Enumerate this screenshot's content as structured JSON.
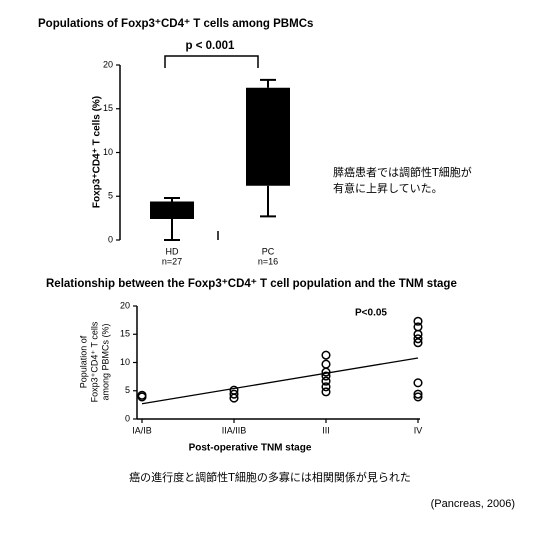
{
  "chart_data": [
    {
      "type": "box",
      "title": "Populations of Foxp3⁺CD4⁺ T cells among PBMCs",
      "annotation": "p < 0.001",
      "ylabel": "Foxp3⁺CD4⁺ T cells (%)",
      "categories": [
        "HD",
        "PC"
      ],
      "n_labels": [
        "n=27",
        "n=16"
      ],
      "boxes": [
        {
          "min": 0,
          "q1": 2.4,
          "q3": 4.4,
          "max": 4.8
        },
        {
          "min": 2.7,
          "q1": 6.2,
          "q3": 17.4,
          "max": 18.3
        }
      ],
      "color": "#000000",
      "ylim": [
        0,
        20
      ],
      "yticks": [
        0,
        5,
        10,
        15,
        20
      ]
    },
    {
      "type": "scatter",
      "title": "Relationship between the Foxp3⁺CD4⁺ T cell population and the TNM stage",
      "annotation": "P<0.05",
      "ylabel_lines": [
        "Population of",
        "Foxp3⁺CD4⁺ T cells",
        "among PBMCs (%)"
      ],
      "xlabel": "Post-operative TNM stage",
      "categories": [
        "IA/IB",
        "IIA/IIB",
        "III",
        "IV"
      ],
      "groups": [
        [
          4.2,
          3.9
        ],
        [
          5.1,
          4.4,
          3.7
        ],
        [
          11.3,
          9.7,
          8.3,
          7.6,
          6.7,
          5.7,
          4.8
        ],
        [
          17.3,
          16.3,
          15.0,
          14.2,
          13.5,
          6.4,
          4.4,
          3.9
        ]
      ],
      "trend": [
        2.7,
        10.8
      ],
      "color": "#000000",
      "ylim": [
        0,
        20
      ],
      "yticks": [
        0,
        5,
        10,
        15,
        20
      ]
    }
  ],
  "notes": {
    "finding_1": [
      "膵癌患者では調節性T細胞が",
      "有意に上昇していた。"
    ],
    "finding_2": "癌の進行度と調節性T細胞の多寡には相関関係が見られた",
    "source": "(Pancreas, 2006)"
  }
}
